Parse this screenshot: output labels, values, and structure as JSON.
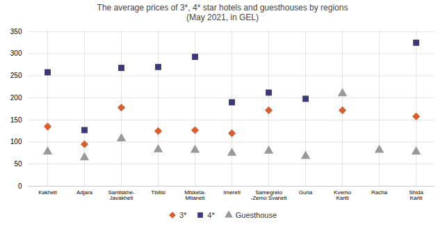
{
  "chart_data": {
    "type": "scatter",
    "title": "The average prices of 3*, 4* star hotels and guesthouses by regions\n(May 2021, in GEL)",
    "categories": [
      "Kakheti",
      "Adjara",
      "Samtskhe-\nJavakheti",
      "Tbilisi",
      "Mtsketa-\nMtianeti",
      "Imereti",
      "Samegrelo\n-Zemo Svaneti",
      "Guria",
      "Kvemo\nKartli",
      "Racha",
      "Shida\nKartli"
    ],
    "series": [
      {
        "name": "3*",
        "color": "#e05a2b",
        "marker": "diamond",
        "values": [
          135,
          95,
          178,
          125,
          127,
          120,
          172,
          null,
          172,
          null,
          158
        ]
      },
      {
        "name": "4*",
        "color": "#3d3878",
        "marker": "square",
        "values": [
          258,
          127,
          268,
          270,
          293,
          190,
          212,
          198,
          null,
          null,
          325
        ]
      },
      {
        "name": "Guesthouse",
        "color": "#999999",
        "marker": "triangle",
        "values": [
          78,
          65,
          108,
          83,
          82,
          75,
          80,
          68,
          210,
          82,
          78
        ]
      }
    ],
    "ylim": [
      0,
      350
    ],
    "yticks": [
      0,
      50,
      100,
      150,
      200,
      250,
      300,
      350
    ],
    "grid": true,
    "legend": "bottom"
  }
}
